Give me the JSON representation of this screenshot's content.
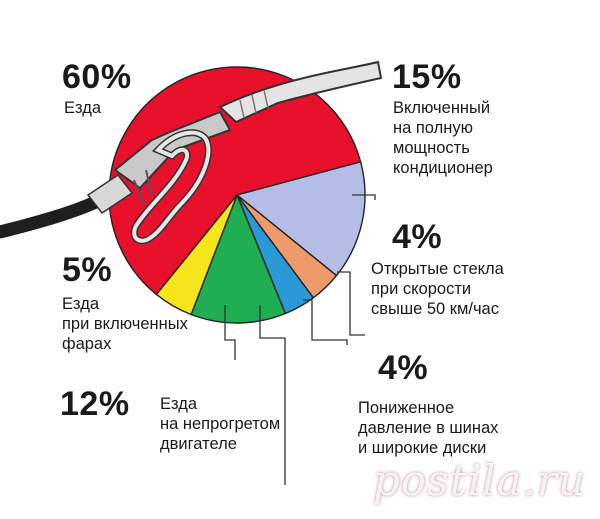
{
  "chart_data": {
    "type": "pie",
    "slices": [
      {
        "percent": 60,
        "label": "Езда",
        "color": "#e8102a"
      },
      {
        "percent": 15,
        "label": "Включенный\nна полную\nмощность\nкондиционер",
        "color": "#b4bde6"
      },
      {
        "percent": 4,
        "label": "Открытые стекла\nпри скорости\nсвыше 50 км/час",
        "color": "#ef9a6a"
      },
      {
        "percent": 4,
        "label": "Пониженное\nдавление в шинах\nи широкие диски",
        "color": "#2a9ad6"
      },
      {
        "percent": 12,
        "label": "Езда\nна непрогретом\nдвигателе",
        "color": "#1fae52"
      },
      {
        "percent": 5,
        "label": "Езда\nпри включенных\nфарах",
        "color": "#f7e51c"
      }
    ]
  },
  "labels": {
    "drive_pct": "60%",
    "drive_text": "Езда",
    "ac_pct": "15%",
    "ac_text": "Включенный\nна полную\nмощность\nкондиционер",
    "windows_pct": "4%",
    "windows_text": "Открытые стекла\nпри скорости\nсвыше 50 км/час",
    "tires_pct": "4%",
    "tires_text": "Пониженное\nдавление в шинах\nи широкие диски",
    "cold_pct": "12%",
    "cold_text": "Езда\nна непрогретом\nдвигателе",
    "lights_pct": "5%",
    "lights_text": "Езда\nпри включенных\nфарах"
  },
  "watermark": "postila.ru"
}
